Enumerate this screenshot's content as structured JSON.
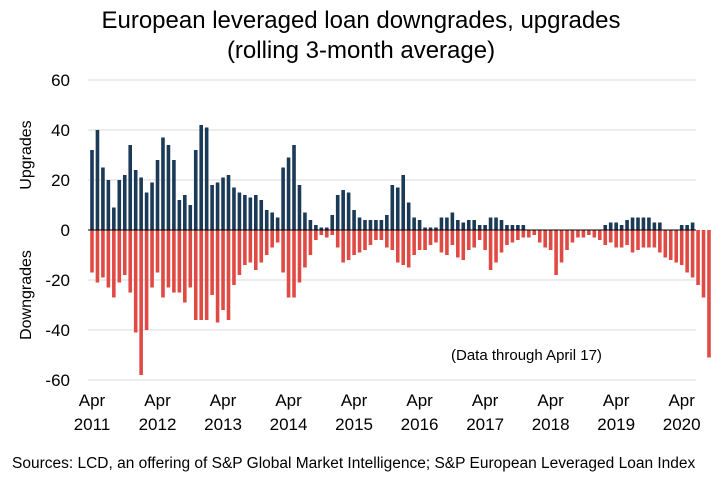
{
  "chart_data": {
    "type": "bar",
    "title_line1": "European leveraged loan downgrades, upgrades",
    "title_line2": "(rolling 3-month average)",
    "ylabel_upgrades": "Upgrades",
    "ylabel_downgrades": "Downgrades",
    "ylim": [
      -60,
      60
    ],
    "yticks": [
      60,
      40,
      20,
      0,
      -20,
      -40,
      -60
    ],
    "x_ticks": [
      {
        "month": "Apr",
        "year": "2011",
        "index": 0
      },
      {
        "month": "Apr",
        "year": "2012",
        "index": 12
      },
      {
        "month": "Apr",
        "year": "2013",
        "index": 24
      },
      {
        "month": "Apr",
        "year": "2014",
        "index": 36
      },
      {
        "month": "Apr",
        "year": "2015",
        "index": 48
      },
      {
        "month": "Apr",
        "year": "2016",
        "index": 60
      },
      {
        "month": "Apr",
        "year": "2017",
        "index": 72
      },
      {
        "month": "Apr",
        "year": "2018",
        "index": 84
      },
      {
        "month": "Apr",
        "year": "2019",
        "index": 96
      },
      {
        "month": "Apr",
        "year": "2020",
        "index": 108
      }
    ],
    "annotation": "(Data through April 17)",
    "series": [
      {
        "name": "Upgrades",
        "color": "#1b3a57",
        "values": [
          32,
          40,
          25,
          20,
          9,
          20,
          22,
          34,
          24,
          21,
          15,
          19,
          28,
          37,
          34,
          28,
          12,
          14,
          10,
          32,
          42,
          41,
          18,
          19,
          21,
          22,
          17,
          15,
          14,
          13,
          14,
          12,
          8,
          7,
          5,
          25,
          29,
          34,
          18,
          7,
          4,
          2,
          1,
          1,
          6,
          14,
          16,
          15,
          8,
          5,
          4,
          4,
          4,
          4,
          6,
          18,
          17,
          22,
          11,
          5,
          4,
          1,
          1,
          1,
          5,
          5,
          7,
          4,
          3,
          4,
          4,
          2,
          2,
          5,
          5,
          4,
          2,
          2,
          2,
          2,
          0,
          0,
          0,
          0,
          0,
          0,
          0,
          0,
          0,
          0,
          0,
          0,
          0,
          0,
          2,
          3,
          3,
          2,
          4,
          5,
          5,
          5,
          5,
          3,
          3,
          0,
          0,
          0,
          2,
          2,
          3,
          0,
          0,
          0
        ]
      },
      {
        "name": "Downgrades",
        "color": "#e04a44",
        "values": [
          -17,
          -21,
          -19,
          -23,
          -27,
          -21,
          -18,
          -25,
          -41,
          -58,
          -40,
          -23,
          -17,
          -27,
          -23,
          -25,
          -25,
          -29,
          -23,
          -36,
          -36,
          -36,
          -26,
          -37,
          -32,
          -36,
          -22,
          -18,
          -14,
          -13,
          -16,
          -13,
          -10,
          -7,
          -5,
          -17,
          -27,
          -27,
          -21,
          -15,
          -10,
          -4,
          -2,
          -3,
          -2,
          -7,
          -13,
          -12,
          -10,
          -9,
          -8,
          -6,
          -4,
          -4,
          -7,
          -8,
          -13,
          -14,
          -15,
          -10,
          -8,
          -8,
          -6,
          -5,
          -9,
          -10,
          -6,
          -11,
          -12,
          -8,
          -7,
          -4,
          -8,
          -16,
          -13,
          -9,
          -6,
          -5,
          -4,
          -3,
          -3,
          -2,
          -5,
          -7,
          -8,
          -18,
          -13,
          -8,
          -5,
          -3,
          -3,
          -2,
          -3,
          -4,
          -6,
          -5,
          -7,
          -7,
          -6,
          -9,
          -8,
          -7,
          -7,
          -7,
          -9,
          -11,
          -12,
          -13,
          -14,
          -17,
          -19,
          -22,
          -27,
          -51
        ]
      }
    ]
  },
  "footer": {
    "source": "Sources: LCD, an offering of S&P Global Market Intelligence; S&P European Leveraged Loan Index"
  }
}
